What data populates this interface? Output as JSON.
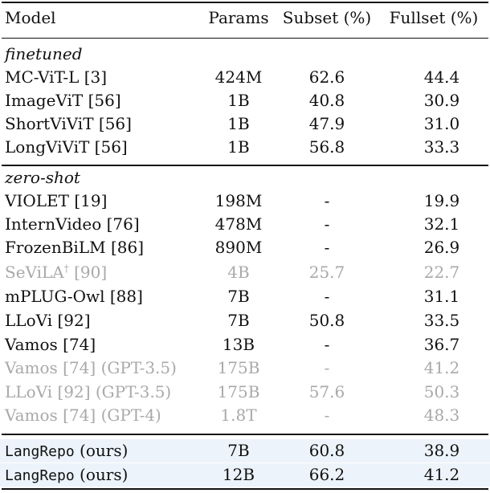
{
  "table": {
    "headers": [
      "Model",
      "Params",
      "Subset (%)",
      "Fullset (%)"
    ],
    "sections": [
      {
        "label": "finetuned",
        "rows": [
          {
            "model": "MC-ViT-L [3]",
            "params": "424M",
            "subset": "62.6",
            "fullset": "44.4"
          },
          {
            "model": "ImageViT [56]",
            "params": "1B",
            "subset": "40.8",
            "fullset": "30.9"
          },
          {
            "model": "ShortViViT [56]",
            "params": "1B",
            "subset": "47.9",
            "fullset": "31.0"
          },
          {
            "model": "LongViViT [56]",
            "params": "1B",
            "subset": "56.8",
            "fullset": "33.3"
          }
        ]
      },
      {
        "label": "zero-shot",
        "rows": [
          {
            "model": "VIOLET [19]",
            "params": "198M",
            "subset": "-",
            "fullset": "19.9"
          },
          {
            "model": "InternVideo [76]",
            "params": "478M",
            "subset": "-",
            "fullset": "32.1"
          },
          {
            "model": "FrozenBiLM [86]",
            "params": "890M",
            "subset": "-",
            "fullset": "26.9"
          },
          {
            "model": "SeViLA",
            "sup": "†",
            "model_ref": " [90]",
            "params": "4B",
            "subset": "25.7",
            "fullset": "22.7",
            "gray": true
          },
          {
            "model": "mPLUG-Owl [88]",
            "params": "7B",
            "subset": "-",
            "fullset": "31.1"
          },
          {
            "model": "LLoVi [92]",
            "params": "7B",
            "subset": "50.8",
            "fullset": "33.5"
          },
          {
            "model": "Vamos [74]",
            "params": "13B",
            "subset": "-",
            "fullset": "36.7"
          },
          {
            "model": "Vamos [74] (GPT-3.5)",
            "params": "175B",
            "subset": "-",
            "fullset": "41.2",
            "gray": true
          },
          {
            "model": "LLoVi [92] (GPT-3.5)",
            "params": "175B",
            "subset": "57.6",
            "fullset": "50.3",
            "gray": true
          },
          {
            "model": "Vamos [74] (GPT-4)",
            "params": "1.8T",
            "subset": "-",
            "fullset": "48.3",
            "gray": true
          }
        ]
      }
    ],
    "ours": [
      {
        "model_mono": "LangRepo",
        "model_rest": " (ours)",
        "params": "7B",
        "subset": "60.8",
        "fullset": "38.9"
      },
      {
        "model_mono": "LangRepo",
        "model_rest": " (ours)",
        "params": "12B",
        "subset": "66.2",
        "fullset": "41.2"
      }
    ],
    "colors": {
      "highlight": "#ecf3fb",
      "gray_text": "#a9a9a9"
    }
  }
}
